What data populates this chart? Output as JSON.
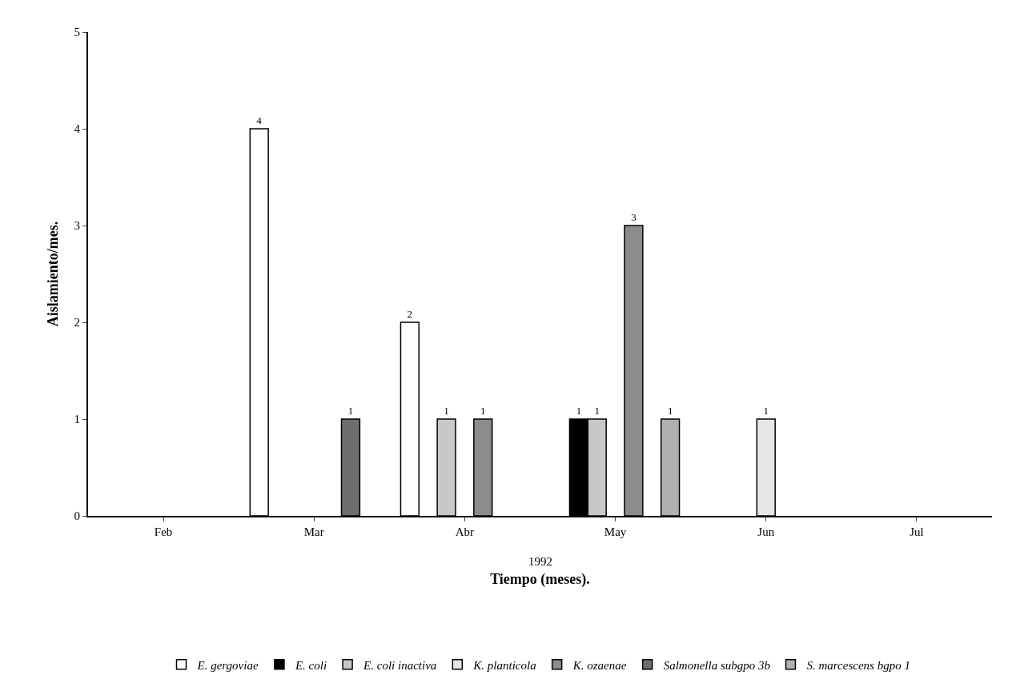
{
  "chart_data": {
    "type": "bar",
    "xlabel": "Tiempo (meses).",
    "ylabel": "Aislamiento/mes.",
    "annotations": [
      "1992"
    ],
    "categories": [
      "Feb",
      "Mar",
      "Abr",
      "May",
      "Jun",
      "Jul"
    ],
    "series": [
      {
        "name": "E. gergoviae",
        "color": "#ffffff",
        "values": [
          null,
          4,
          2,
          null,
          null,
          null
        ]
      },
      {
        "name": "E. coli",
        "color": "#000000",
        "values": [
          null,
          null,
          null,
          1,
          null,
          null
        ]
      },
      {
        "name": "E. coli inactiva",
        "color": "#c8c8c8",
        "values": [
          null,
          null,
          1,
          1,
          null,
          null
        ]
      },
      {
        "name": "K. planticola",
        "color": "#e6e6e6",
        "values": [
          null,
          null,
          null,
          null,
          1,
          null
        ]
      },
      {
        "name": "K. ozaenae",
        "color": "#8c8c8c",
        "values": [
          null,
          null,
          1,
          3,
          null,
          null
        ]
      },
      {
        "name": "Salmonella subgpo 3b",
        "color": "#6e6e6e",
        "values": [
          null,
          1,
          null,
          null,
          null,
          null
        ]
      },
      {
        "name": "S. marcescens bgpo 1",
        "color": "#b0b0b0",
        "values": [
          null,
          null,
          null,
          1,
          null,
          null
        ]
      }
    ],
    "ylim": [
      0,
      5
    ],
    "yticks": [
      0,
      1,
      2,
      3,
      4,
      5
    ],
    "data_labels": true,
    "legend": "bottom"
  }
}
